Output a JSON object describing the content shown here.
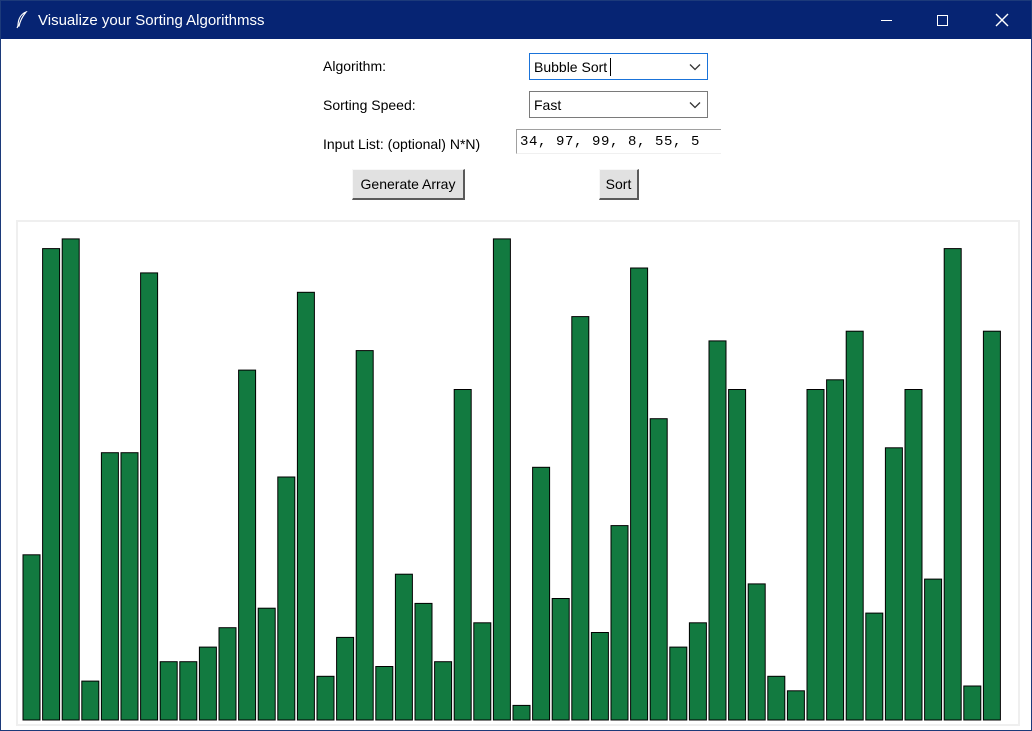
{
  "window": {
    "title": "Visualize your Sorting Algorithmss",
    "icons": {
      "app": "feather-icon",
      "minimize": "minimize-icon",
      "maximize": "maximize-icon",
      "close": "close-icon"
    }
  },
  "controls": {
    "algorithm_label": "Algorithm:",
    "algorithm_value": "Bubble Sort",
    "speed_label": "Sorting Speed:",
    "speed_value": "Fast",
    "input_label": "Input List: (optional) N*N)",
    "input_value": "34, 97, 99, 8, 55, 5",
    "generate_button": "Generate Array",
    "sort_button": "Sort"
  },
  "colors": {
    "bar_fill": "#127a40",
    "bar_stroke": "#000000",
    "title_bar": "#062473",
    "focus_border": "#1a73d9"
  },
  "chart_data": {
    "type": "bar",
    "ylim": [
      0,
      100
    ],
    "values": [
      34,
      97,
      99,
      8,
      55,
      55,
      92,
      12,
      12,
      15,
      19,
      72,
      23,
      50,
      88,
      9,
      17,
      76,
      11,
      30,
      24,
      12,
      68,
      20,
      99,
      3,
      52,
      25,
      83,
      18,
      40,
      93,
      62,
      15,
      20,
      78,
      68,
      28,
      9,
      6,
      68,
      70,
      80,
      22,
      56,
      68,
      29,
      97,
      7,
      80
    ]
  }
}
